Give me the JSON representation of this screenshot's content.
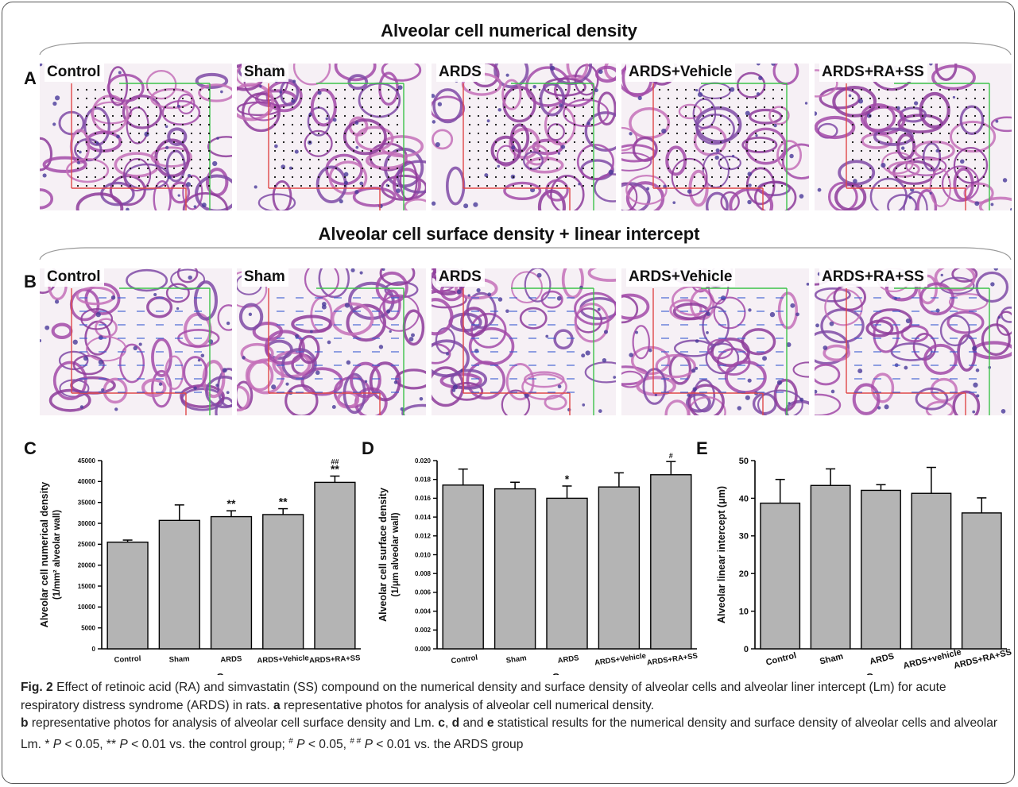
{
  "figure": {
    "panel_a": {
      "letter": "A",
      "title": "Alveolar cell numerical density",
      "images": [
        {
          "label": "Control"
        },
        {
          "label": "Sham"
        },
        {
          "label": "ARDS"
        },
        {
          "label": "ARDS+Vehicle"
        },
        {
          "label": "ARDS+RA+SS"
        }
      ]
    },
    "panel_b": {
      "letter": "B",
      "title": "Alveolar cell surface density + linear intercept",
      "images": [
        {
          "label": "Control"
        },
        {
          "label": "Sham"
        },
        {
          "label": "ARDS"
        },
        {
          "label": "ARDS+Vehicle"
        },
        {
          "label": "ARDS+RA+SS"
        }
      ]
    },
    "caption": {
      "fig_label": "Fig. 2",
      "intro": " Effect of retinoic acid (RA) and simvastatin (SS) compound on the numerical density and surface density of alveolar cells and alveolar liner intercept (Lm) for acute respiratory distress syndrome (ARDS) in rats. ",
      "a_letter": "a",
      "a_text": " representative photos for analysis of alveolar cell numerical density.",
      "b_letter": "b",
      "b_text": " representative photos for analysis of alveolar cell surface density and Lm. ",
      "cde_c": "c",
      "cde_sep1": ", ",
      "cde_d": "d",
      "cde_and": " and ",
      "cde_e": "e",
      "cde_text": " statistical results for the numerical density and surface density of alveolar cells and alveolar Lm. * ",
      "p1": "P",
      "p1_text": " < 0.05, ** ",
      "p2": "P",
      "p2_text": " < 0.01 vs. the control group; ",
      "hash1": "#",
      "p3": " P",
      "p3_text": " < 0.05, ",
      "hash2": "# #",
      "p4": " P",
      "p4_text": " < 0.01 vs. the ARDS group"
    }
  },
  "chart_data": [
    {
      "letter": "C",
      "type": "bar",
      "categories": [
        "Control",
        "Sham",
        "ARDS",
        "ARDS+Vehicle",
        "ARDS+RA+SS"
      ],
      "values": [
        25500,
        30700,
        31600,
        32100,
        39800
      ],
      "errors": [
        500,
        3700,
        1400,
        1400,
        1500
      ],
      "annotations": [
        "",
        "",
        "**",
        "**",
        "##\n**"
      ],
      "ylabel_line1": "Alveolar cell numerical density",
      "ylabel_line2": "(1/mm² alveolar wall)",
      "xlabel": "Group",
      "ylim": [
        0,
        45000
      ],
      "yticks": [
        0,
        5000,
        10000,
        15000,
        20000,
        25000,
        30000,
        35000,
        40000,
        45000
      ],
      "ytick_labels": [
        "0",
        "5000",
        "10000",
        "15000",
        "20000",
        "25000",
        "30000",
        "35000",
        "40000",
        "45000"
      ],
      "bar_color": "#b4b4b4"
    },
    {
      "letter": "D",
      "type": "bar",
      "categories": [
        "Control",
        "Sham",
        "ARDS",
        "ARDS+Vehicle",
        "ARDS+RA+SS"
      ],
      "values": [
        0.0174,
        0.017,
        0.016,
        0.0172,
        0.0185
      ],
      "errors": [
        0.0017,
        0.0007,
        0.0013,
        0.0015,
        0.0014
      ],
      "annotations": [
        "",
        "",
        "*",
        "",
        "#"
      ],
      "ylabel_line1": "Alveolar cell surface density",
      "ylabel_line2": "(1/μm alveolar wall)",
      "xlabel": "Group",
      "ylim": [
        0,
        0.02
      ],
      "yticks": [
        0,
        0.002,
        0.004,
        0.006,
        0.008,
        0.01,
        0.012,
        0.014,
        0.016,
        0.018,
        0.02
      ],
      "ytick_labels": [
        "0.000",
        "0.002",
        "0.004",
        "0.006",
        "0.008",
        "0.010",
        "0.012",
        "0.014",
        "0.016",
        "0.018",
        "0.020"
      ],
      "bar_color": "#b4b4b4"
    },
    {
      "letter": "E",
      "type": "bar",
      "categories": [
        "Control",
        "Sham",
        "ARDS",
        "ARDS+vehicle",
        "ARDS+RA+SS"
      ],
      "values": [
        38.7,
        43.4,
        42.1,
        41.3,
        36.1
      ],
      "errors": [
        6.3,
        4.4,
        1.5,
        6.9,
        4.0
      ],
      "annotations": [
        "",
        "",
        "",
        "",
        ""
      ],
      "ylabel_line1": "Alveolar linear intercept  (μm)",
      "ylabel_line2": "",
      "xlabel": "Group",
      "ylim": [
        0,
        50
      ],
      "yticks": [
        0,
        10,
        20,
        30,
        40,
        50
      ],
      "ytick_labels": [
        "0",
        "10",
        "20",
        "30",
        "40",
        "50"
      ],
      "bar_color": "#b4b4b4"
    }
  ]
}
